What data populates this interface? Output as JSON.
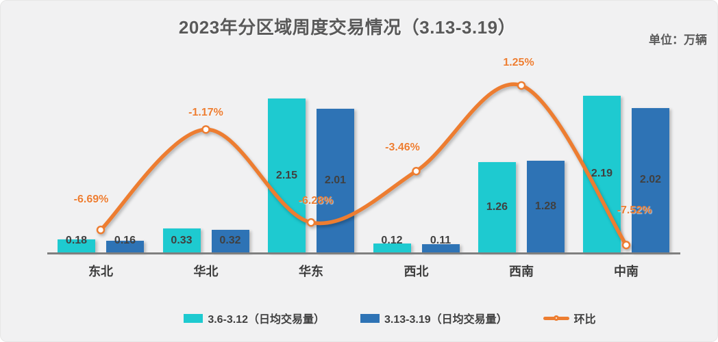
{
  "title": "2023年分区域周度交易情况（3.13-3.19）",
  "unit_label": "单位：万辆",
  "colors": {
    "background": "#f1f1f2",
    "axis_line": "#7f7f7f",
    "bar_series_1": "#1ecad0",
    "bar_series_2": "#2e73b5",
    "line_series": "#ed7d31",
    "value_label_text": "#404040",
    "title_text": "#595959"
  },
  "chart_data": {
    "type": "bar",
    "subtype": "grouped bars with smoothed line on secondary percent axis",
    "title": "2023年分区域周度交易情况（3.13-3.19）",
    "unit": "万辆",
    "grid": false,
    "legend_position": "bottom",
    "categories": [
      "东北",
      "华北",
      "华东",
      "西北",
      "西南",
      "中南"
    ],
    "series": [
      {
        "name": "3.6-3.12（日均交易量）",
        "kind": "bar",
        "color": "#1ecad0",
        "values": [
          0.18,
          0.33,
          2.15,
          0.12,
          1.26,
          2.19
        ],
        "value_labels": [
          "0.18",
          "0.33",
          "2.15",
          "0.12",
          "1.26",
          "2.19"
        ]
      },
      {
        "name": "3.13-3.19（日均交易量）",
        "kind": "bar",
        "color": "#2e73b5",
        "values": [
          0.16,
          0.32,
          2.01,
          0.11,
          1.28,
          2.02
        ],
        "value_labels": [
          "0.16",
          "0.32",
          "2.01",
          "0.11",
          "1.28",
          "2.02"
        ]
      },
      {
        "name": "环比",
        "kind": "line",
        "axis": "secondary",
        "color": "#ed7d31",
        "values": [
          -6.69,
          -1.17,
          -6.28,
          -3.46,
          1.25,
          -7.52
        ],
        "value_labels": [
          "-6.69%",
          "-1.17%",
          "-6.28%",
          "-3.46%",
          "1.25%",
          "-7.52%"
        ]
      }
    ],
    "bar_axis": {
      "range": [
        0,
        2.5
      ],
      "visible": false
    },
    "line_axis": {
      "range": [
        -8,
        2
      ],
      "unit": "%",
      "visible": false
    }
  }
}
